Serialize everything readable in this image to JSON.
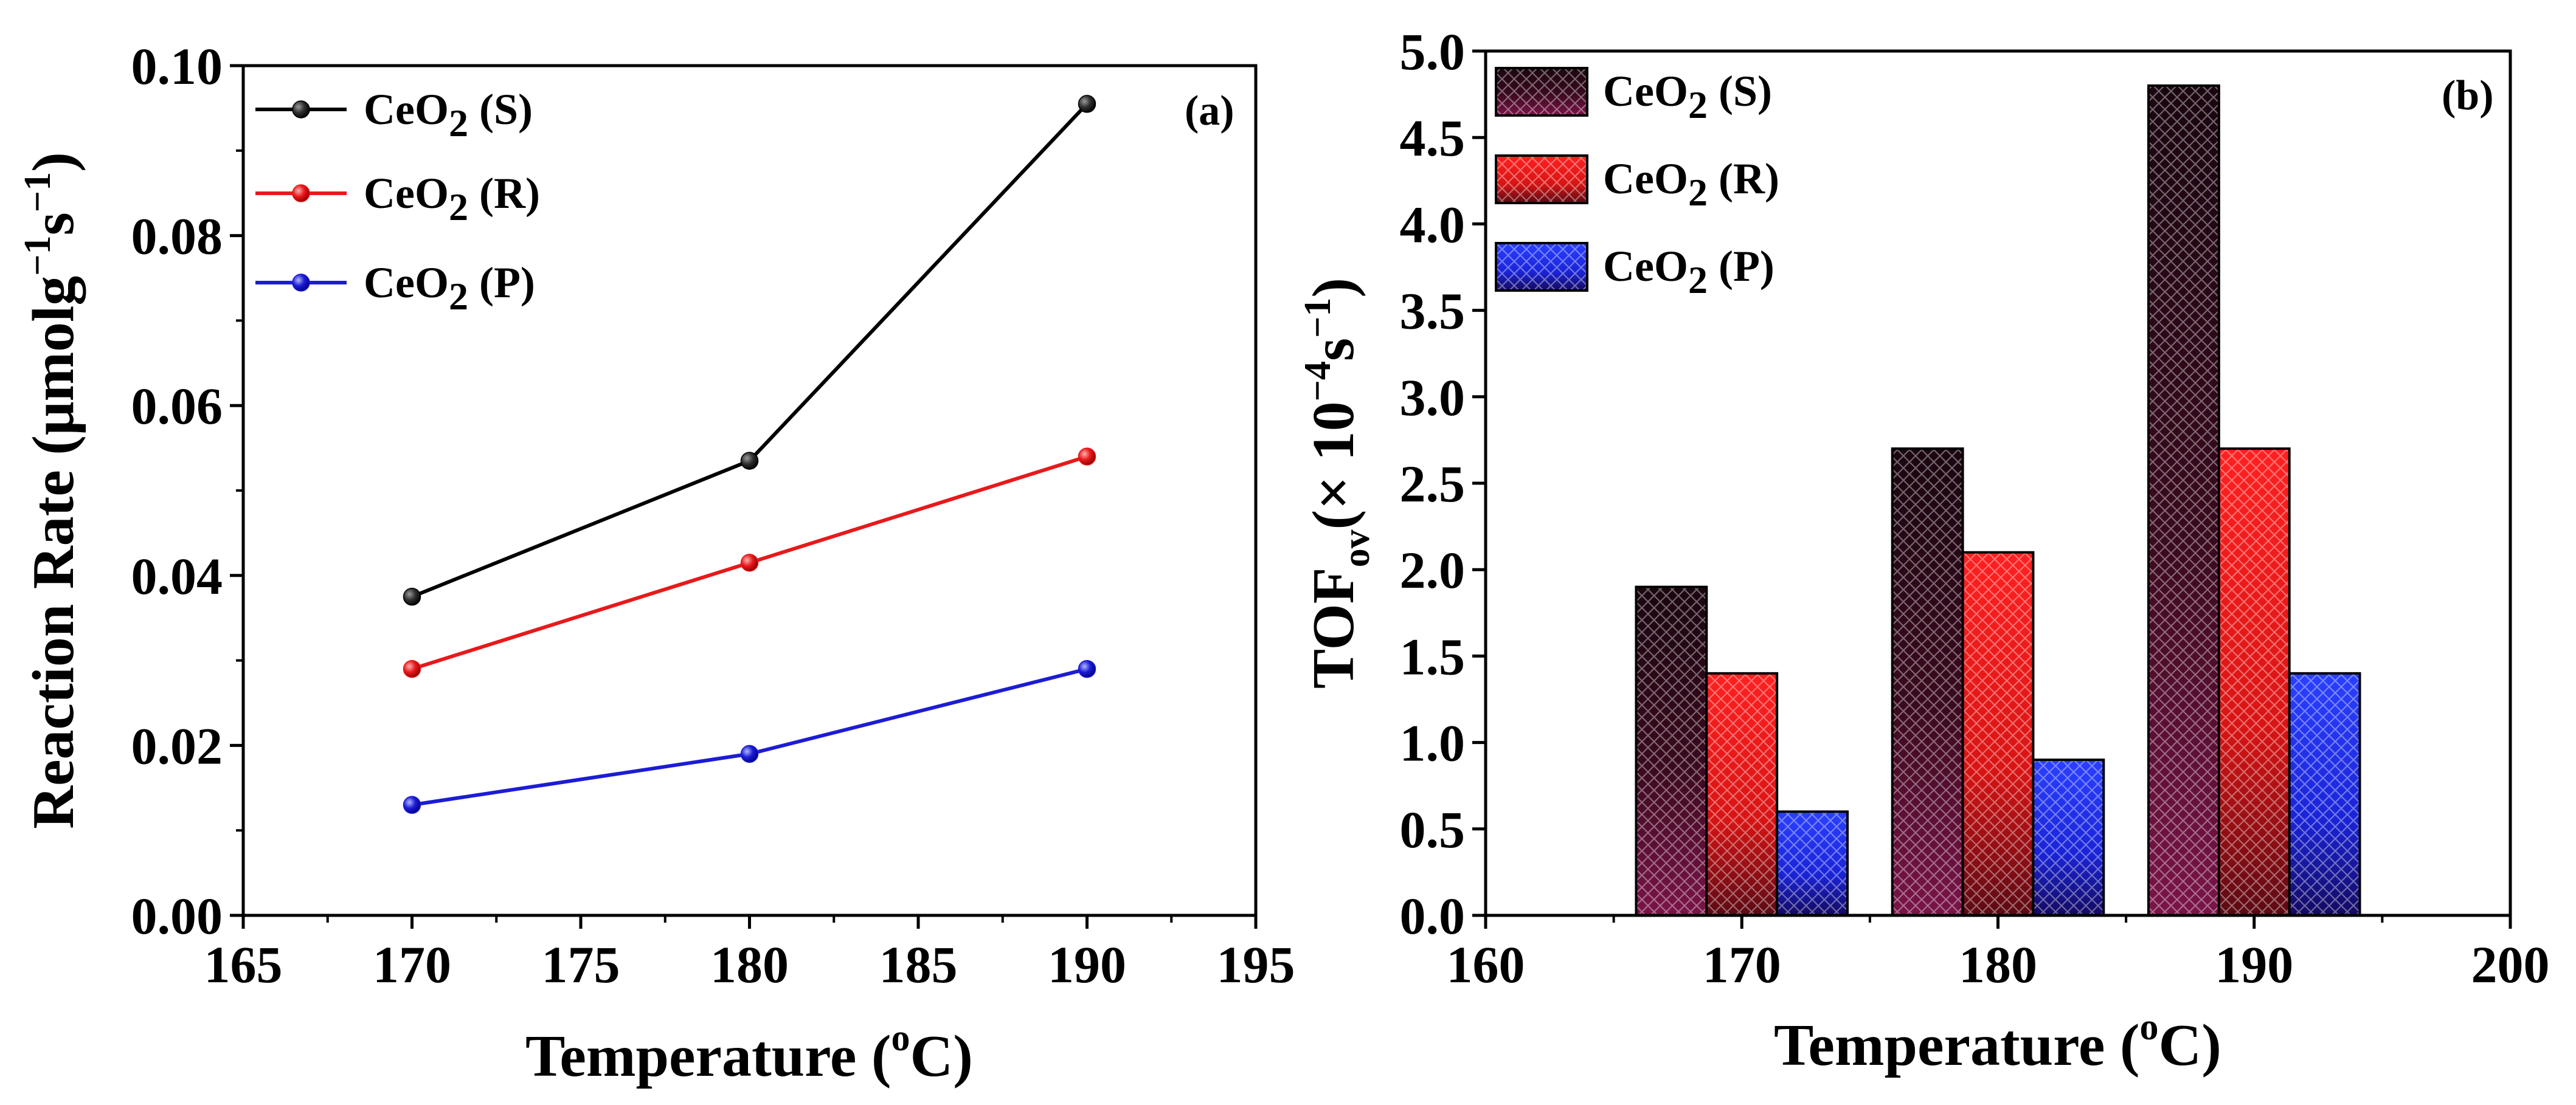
{
  "chart_data": [
    {
      "type": "line",
      "panel_label": "(a)",
      "x": [
        170,
        180,
        190
      ],
      "series": [
        {
          "name": "CeO2 (S)",
          "label_main": "CeO",
          "label_sub": "2",
          "label_suffix": " (S)",
          "color": "#000000",
          "values": [
            0.0375,
            0.0535,
            0.0955
          ]
        },
        {
          "name": "CeO2 (R)",
          "label_main": "CeO",
          "label_sub": "2",
          "label_suffix": " (R)",
          "color": "#e8191b",
          "values": [
            0.029,
            0.0415,
            0.054
          ]
        },
        {
          "name": "CeO2 (P)",
          "label_main": "CeO",
          "label_sub": "2",
          "label_suffix": " (P)",
          "color": "#1c1cd6",
          "values": [
            0.013,
            0.019,
            0.029
          ]
        }
      ],
      "xlim": [
        165,
        195
      ],
      "ylim": [
        0,
        0.1
      ],
      "xticks": [
        "165",
        "170",
        "175",
        "180",
        "185",
        "190",
        "195"
      ],
      "yticks": [
        "0.00",
        "0.02",
        "0.04",
        "0.06",
        "0.08",
        "0.10"
      ],
      "xlabel": {
        "main": "Temperature (",
        "sup": "o",
        "end": "C)"
      },
      "ylabel": {
        "main": "Reaction Rate (μmolg",
        "sup1": "−1",
        "mid": "s",
        "sup2": "−1",
        "end": ")"
      },
      "legend_position": "top-left",
      "grid": false
    },
    {
      "type": "bar",
      "panel_label": "(b)",
      "categories": [
        170,
        180,
        190
      ],
      "series": [
        {
          "name": "CeO2 (S)",
          "label_main": "CeO",
          "label_sub": "2",
          "label_suffix": " (S)",
          "color": "#5a0d28",
          "values": [
            1.9,
            2.7,
            4.8
          ]
        },
        {
          "name": "CeO2 (R)",
          "label_main": "CeO",
          "label_sub": "2",
          "label_suffix": " (R)",
          "color": "#ff1414",
          "values": [
            1.4,
            2.1,
            2.7
          ]
        },
        {
          "name": "CeO2 (P)",
          "label_main": "CeO",
          "label_sub": "2",
          "label_suffix": " (P)",
          "color": "#1e32ff",
          "values": [
            0.6,
            0.9,
            1.4
          ]
        }
      ],
      "bar_width_units": 2.75,
      "xlim": [
        160,
        200
      ],
      "ylim": [
        0,
        5.0
      ],
      "xticks": [
        "160",
        "170",
        "180",
        "190",
        "200"
      ],
      "yticks": [
        "0.0",
        "0.5",
        "1.0",
        "1.5",
        "2.0",
        "2.5",
        "3.0",
        "3.5",
        "4.0",
        "4.5",
        "5.0"
      ],
      "xlabel": {
        "main": "Temperature (",
        "sup": "o",
        "end": "C)"
      },
      "ylabel": {
        "main": "TOF",
        "sub": "ov",
        "mid": "(× 10",
        "sup1": "−4",
        "mid2": "s",
        "sup2": "−1",
        "end": ")"
      },
      "legend_position": "top-left",
      "grid": false
    }
  ]
}
